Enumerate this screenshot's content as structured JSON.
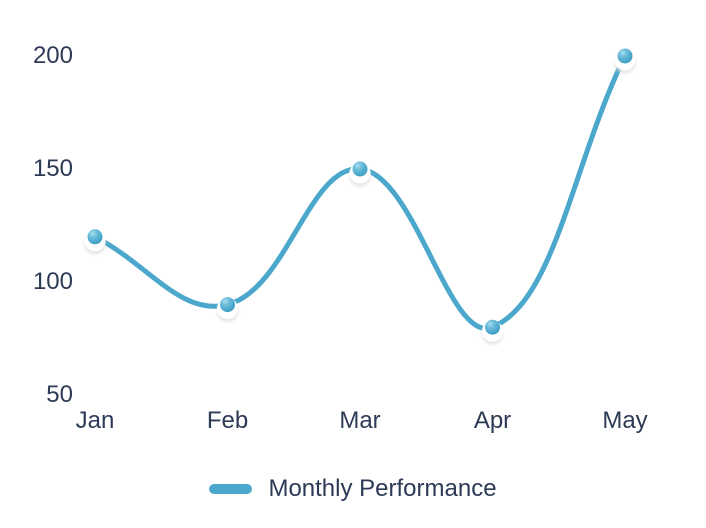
{
  "chart_data": {
    "type": "line",
    "title": "",
    "categories": [
      "Jan",
      "Feb",
      "Mar",
      "Apr",
      "May"
    ],
    "series": [
      {
        "name": "Monthly Performance",
        "values": [
          120,
          90,
          150,
          80,
          200
        ]
      }
    ],
    "y_ticks": [
      50,
      100,
      150,
      200
    ],
    "ylim": [
      50,
      200
    ],
    "grid": false,
    "legend": {
      "position": "bottom",
      "label": "Monthly Performance"
    },
    "colors": {
      "line": "#4BA7CB",
      "point_fill": "#45A3C8",
      "point_highlight": "#A9DFF0",
      "point_ring": "#FFFFFF",
      "point_shadow": "#DEDEDE",
      "text": "#2D3A55",
      "background": "#FFFFFF"
    }
  }
}
